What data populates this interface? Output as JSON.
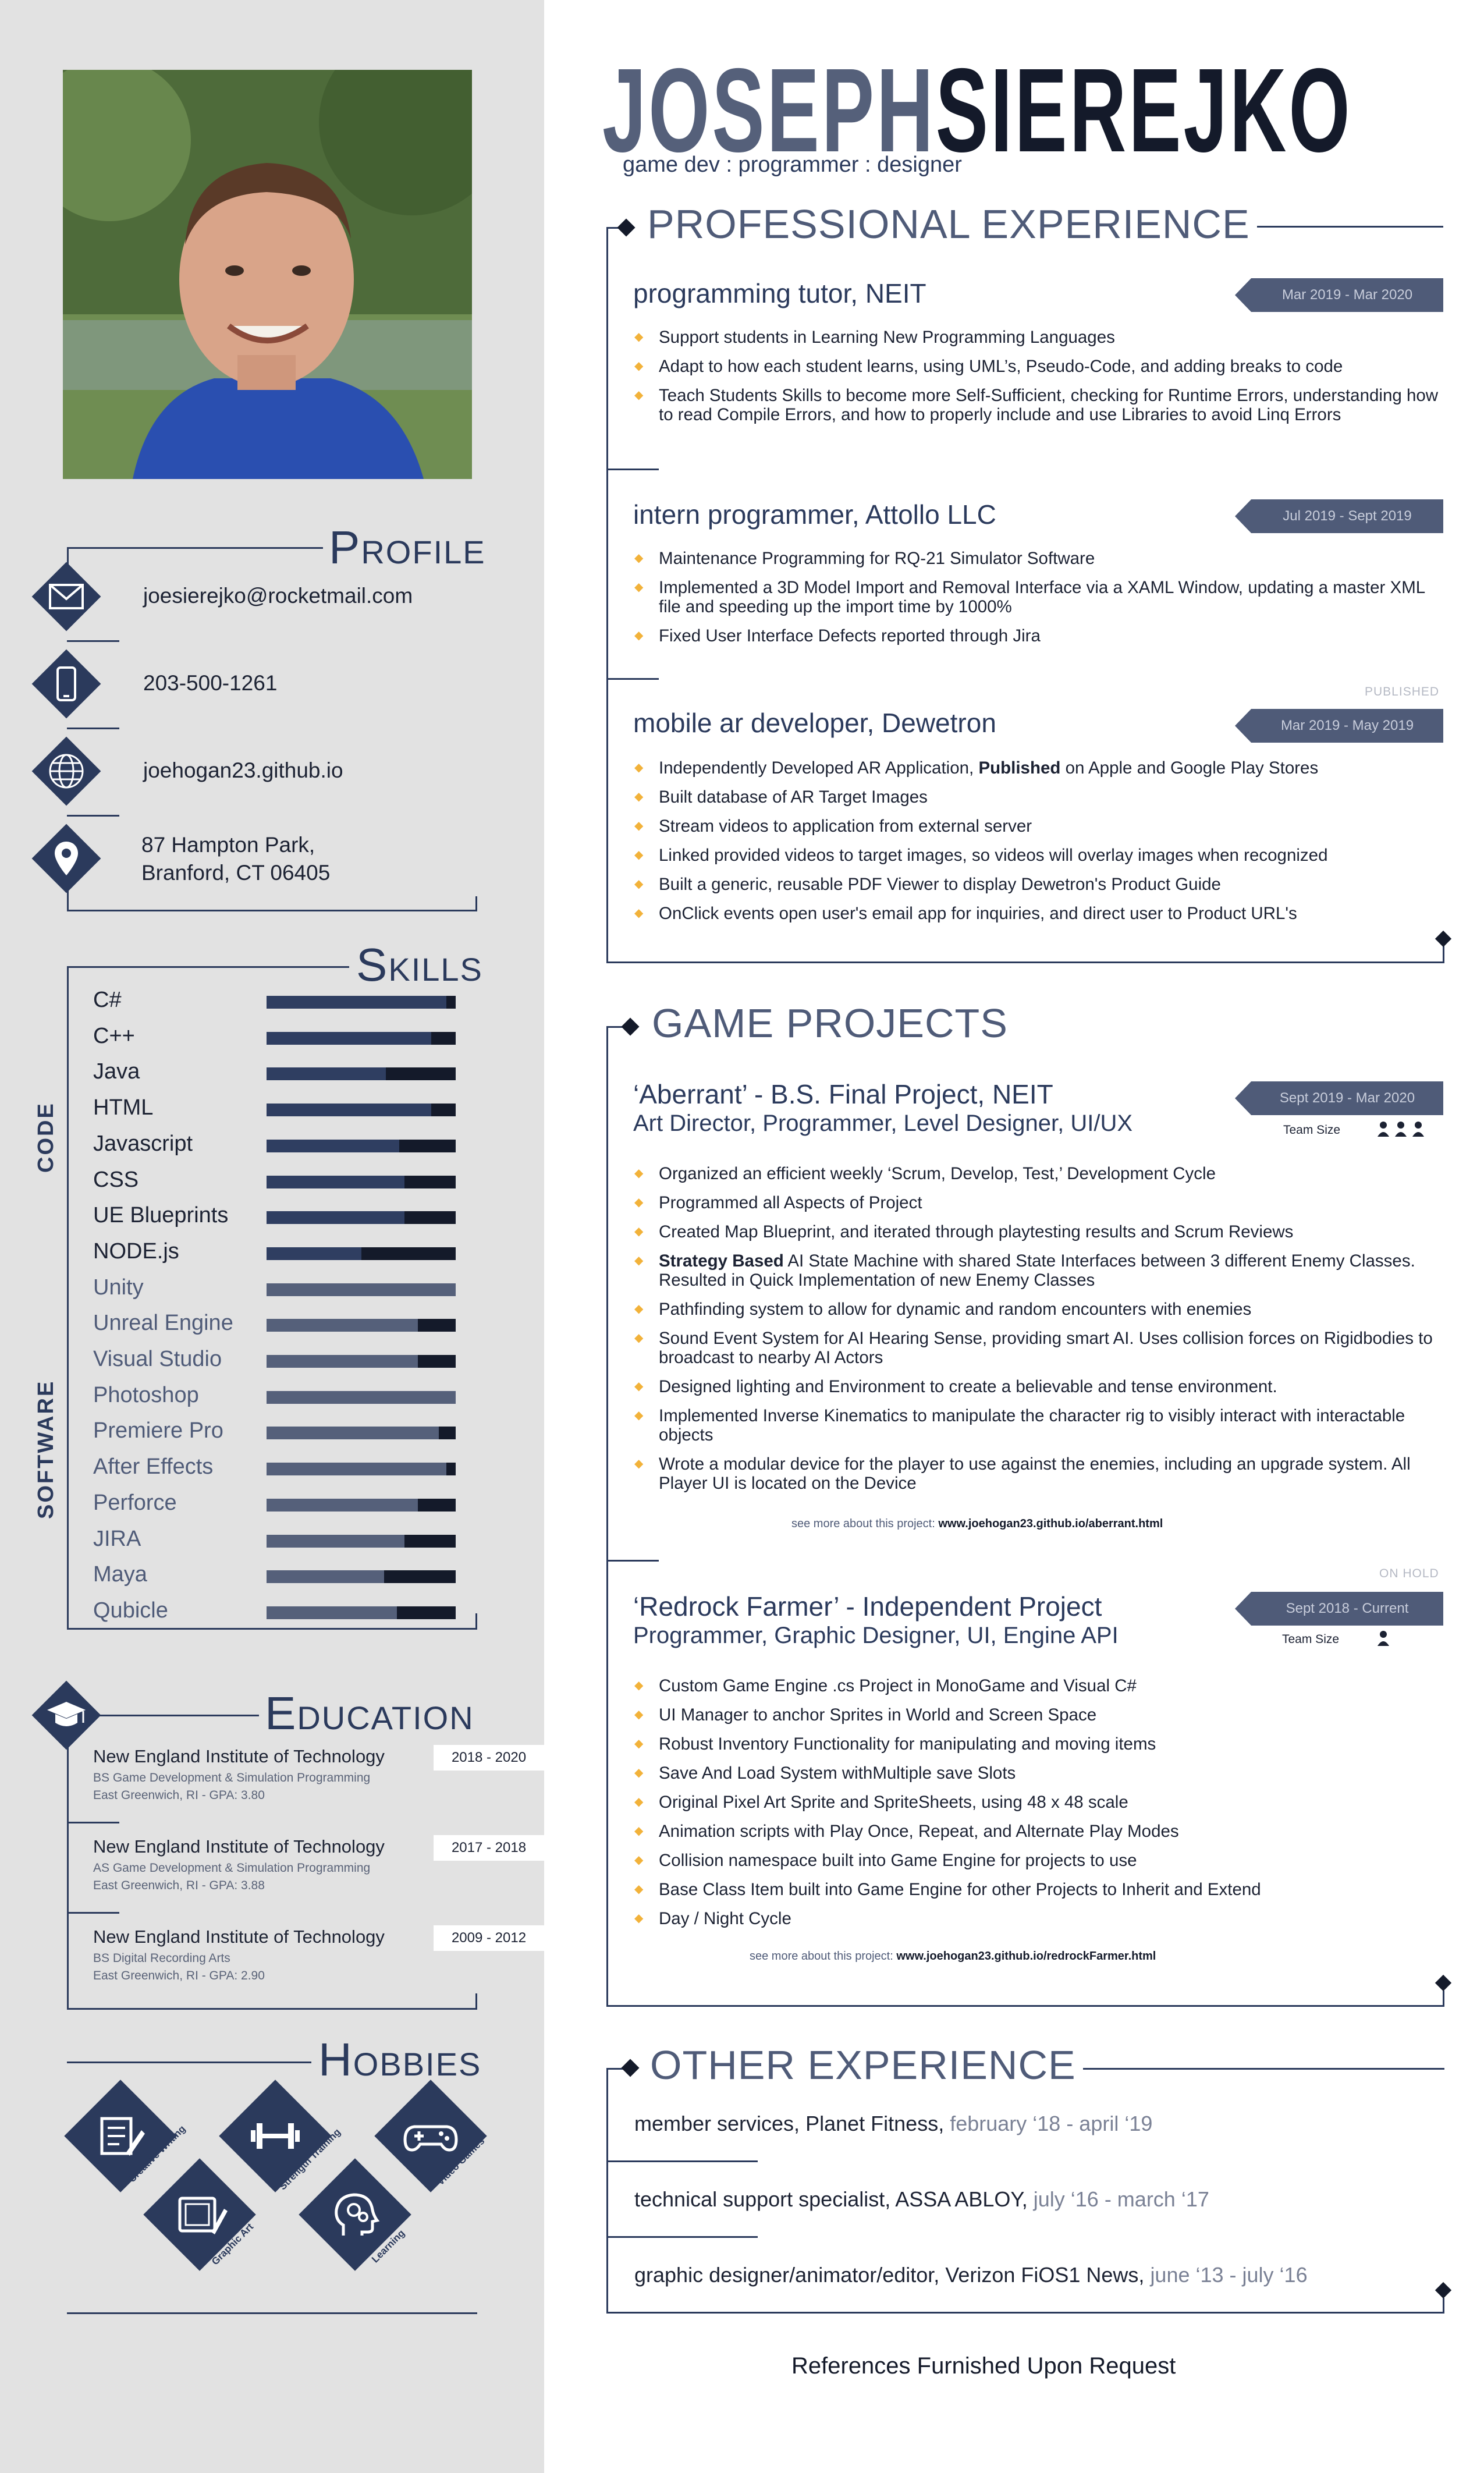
{
  "name": {
    "first": "JOSEPH",
    "last": "SIEREJKO"
  },
  "tagline": "game dev : programmer : designer",
  "profile": {
    "heading_initial": "P",
    "heading_rest": "ROFILE",
    "email": "joesierejko@rocketmail.com",
    "phone": "203-500-1261",
    "website": "joehogan23.github.io",
    "address_line1": "87 Hampton Park,",
    "address_line2": "Branford, CT 06405"
  },
  "skills": {
    "heading_initial": "S",
    "heading_rest": "KILLS",
    "code_label": "CODE",
    "software_label": "SOFTWARE",
    "code": [
      {
        "name": "C#",
        "level": 0.95
      },
      {
        "name": "C++",
        "level": 0.87
      },
      {
        "name": "Java",
        "level": 0.63
      },
      {
        "name": "HTML",
        "level": 0.87
      },
      {
        "name": "Javascript",
        "level": 0.7
      },
      {
        "name": "CSS",
        "level": 0.73
      },
      {
        "name": "UE Blueprints",
        "level": 0.73
      },
      {
        "name": "NODE.js",
        "level": 0.5
      }
    ],
    "software": [
      {
        "name": "Unity",
        "level": 1.0
      },
      {
        "name": "Unreal Engine",
        "level": 0.8
      },
      {
        "name": "Visual Studio",
        "level": 0.8
      },
      {
        "name": "Photoshop",
        "level": 1.0
      },
      {
        "name": "Premiere Pro",
        "level": 0.91
      },
      {
        "name": "After Effects",
        "level": 0.95
      },
      {
        "name": "Perforce",
        "level": 0.8
      },
      {
        "name": "JIRA",
        "level": 0.73
      },
      {
        "name": "Maya",
        "level": 0.62
      },
      {
        "name": "Qubicle",
        "level": 0.69
      }
    ]
  },
  "education": {
    "heading_initial": "E",
    "heading_rest": "DUCATION",
    "entries": [
      {
        "school": "New England Institute of Technology",
        "degree": "BS Game Development & Simulation Programming",
        "location": "East Greenwich, RI - GPA: 3.80",
        "years": "2018 - 2020"
      },
      {
        "school": "New England Institute of Technology",
        "degree": "AS Game Development & Simulation Programming",
        "location": "East Greenwich, RI - GPA: 3.88",
        "years": "2017 - 2018"
      },
      {
        "school": "New England Institute of Technology",
        "degree": "BS Digital Recording Arts",
        "location": "East Greenwich, RI - GPA: 2.90",
        "years": "2009 - 2012"
      }
    ]
  },
  "hobbies": {
    "heading_initial": "H",
    "heading_rest": "OBBIES",
    "items": [
      {
        "label": "Creative Writing",
        "icon": "writing-icon"
      },
      {
        "label": "Graphic Art",
        "icon": "tablet-pen-icon"
      },
      {
        "label": "Strength Training",
        "icon": "dumbbell-icon"
      },
      {
        "label": "Learning",
        "icon": "brain-gears-icon"
      },
      {
        "label": "Video Games",
        "icon": "gamepad-icon"
      }
    ]
  },
  "experience": {
    "heading": "PROFESSIONAL EXPERIENCE",
    "jobs": [
      {
        "title": "programming tutor, NEIT",
        "dates": "Mar 2019 - Mar 2020",
        "bullets": [
          "Support students in Learning New Programming Languages",
          "Adapt to how each student learns, using UML’s, Pseudo-Code, and adding breaks to code",
          "Teach Students Skills to become more Self-Sufficient, checking for Runtime Errors, understanding how to read Compile Errors, and how to properly include and use Libraries to avoid Linq Errors"
        ]
      },
      {
        "title": "intern programmer, Attollo LLC",
        "dates": "Jul 2019 - Sept 2019",
        "bullets": [
          "Maintenance Programming for RQ-21 Simulator Software",
          "Implemented a 3D Model Import and Removal Interface  via a XAML Window, updating a master XML file and speeding up the import time by 1000%",
          "Fixed User Interface Defects reported through Jira"
        ]
      },
      {
        "title": "mobile ar developer, Dewetron",
        "tag": "PUBLISHED",
        "dates": "Mar 2019 - May 2019",
        "bullet1_pre": "Independently Developed AR Application, ",
        "bullet1_bold": "Published",
        "bullet1_post": " on Apple and Google Play Stores",
        "bullets": [
          "Built database of AR Target Images",
          "Stream videos to application from external server",
          "Linked provided videos to target images, so videos will overlay images when recognized",
          "Built a generic, reusable PDF Viewer to display Dewetron's Product Guide",
          "OnClick events open user's email app for inquiries, and direct user to Product URL's"
        ]
      }
    ]
  },
  "projects": {
    "heading": "GAME PROJECTS",
    "items": [
      {
        "title": "‘Aberrant’ - B.S. Final Project, NEIT",
        "roles": "Art Director, Programmer, Level Designer, UI/UX",
        "dates": "Sept 2019 - Mar 2020",
        "team_label": "Team Size",
        "team_icons": "person-icon ×3",
        "bullets": [
          "Organized an efficient weekly ‘Scrum, Develop, Test,’ Development Cycle",
          "Programmed all Aspects of Project",
          "Created Map Blueprint, and iterated through playtesting results and Scrum Reviews"
        ],
        "bold_pre": "Strategy Based",
        "bold_post": " AI State Machine with shared State Interfaces between 3 different Enemy Classes. Resulted in Quick Implementation of new Enemy Classes",
        "bullets2": [
          "Pathfinding system to allow for dynamic and random encounters with enemies",
          "Sound Event System for AI Hearing Sense, providing smart AI. Uses collision forces on Rigidbodies to broadcast to nearby AI Actors",
          "Designed lighting and Environment to create a believable and tense environment.",
          "Implemented Inverse Kinematics to manipulate the character rig to visibly interact with interactable objects",
          "Wrote a modular device for the player to use against the enemies, including an upgrade system. All Player UI is located on the Device"
        ],
        "see_more_label": "see more about this project: ",
        "see_more_url": "www.joehogan23.github.io/aberrant.html"
      },
      {
        "title": "‘Redrock Farmer’ - Independent Project",
        "roles": "Programmer, Graphic Designer, UI, Engine API",
        "tag": "ON HOLD",
        "dates": "Sept 2018 - Current",
        "team_label": "Team Size",
        "bullets": [
          "Custom Game Engine .cs Project in MonoGame  and Visual C#",
          "UI Manager to anchor Sprites in World and Screen Space",
          "Robust Inventory Functionality for manipulating and moving items",
          "Save And Load System withMultiple save Slots",
          "Original Pixel Art Sprite and SpriteSheets, using 48 x 48 scale",
          "Animation scripts with Play Once, Repeat, and Alternate Play Modes",
          "Collision namespace built into Game Engine for projects to use",
          "Base Class Item built into Game Engine for other Projects to Inherit and Extend",
          "Day / Night Cycle"
        ],
        "see_more_label": "see more about this project: ",
        "see_more_url": "www.joehogan23.github.io/redrockFarmer.html"
      }
    ]
  },
  "other": {
    "heading": "OTHER EXPERIENCE",
    "items": [
      {
        "role": "member services, ",
        "org": "Planet Fitness, ",
        "dates": "february ‘18 - april ‘19"
      },
      {
        "role": "technical support specialist, ",
        "org": "ASSA ABLOY, ",
        "dates": "july ‘16 - march ‘17"
      },
      {
        "role": "graphic designer/animator/editor, ",
        "org": "Verizon FiOS1 News, ",
        "dates": "june ‘13 - july ‘16"
      }
    ]
  },
  "references": "References Furnished Upon Request",
  "colors": {
    "navy": "#2b3a5c",
    "slate": "#55607a",
    "accent": "#f2b23a",
    "sidebar": "#e2e2e2"
  }
}
